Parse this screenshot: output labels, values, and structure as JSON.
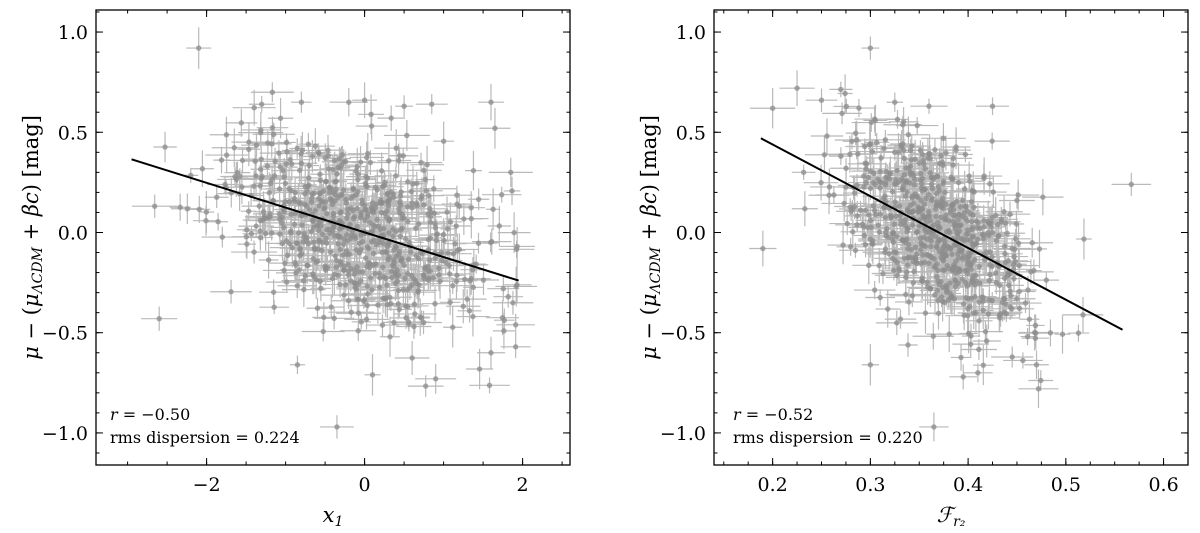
{
  "chart_data": [
    {
      "type": "scatter",
      "xlabel_symbol": "x",
      "xlabel_sub": "1",
      "ylabel_parts": {
        "mu": "μ",
        "minus": " − (",
        "mu2": "μ",
        "sub": "ΛCDM",
        "plus": " + ",
        "beta": "βc",
        "close": ") ",
        "unit": "[mag]"
      },
      "xlim": [
        -3.4,
        2.6
      ],
      "ylim": [
        -1.16,
        1.11
      ],
      "xticks": [
        -2,
        0,
        2
      ],
      "xtick_labels": [
        "−2",
        "0",
        "2"
      ],
      "yticks": [
        1.0,
        0.5,
        0.0,
        -0.5,
        -1.0
      ],
      "ytick_labels": [
        "1.0",
        "0.5",
        "0.0",
        "−0.5",
        "−1.0"
      ],
      "fit_line": {
        "x": [
          -2.95,
          1.95
        ],
        "y": [
          0.365,
          -0.24
        ]
      },
      "annotation": {
        "r_label": "r",
        "r_value": " = −0.50",
        "rms": "rms dispersion = 0.224"
      },
      "outliers": [
        {
          "x": -2.1,
          "y": 0.92
        },
        {
          "x": -2.6,
          "y": -0.43
        },
        {
          "x": -0.35,
          "y": -0.97
        },
        {
          "x": -0.85,
          "y": -0.66
        },
        {
          "x": 0.1,
          "y": -0.71
        },
        {
          "x": 1.6,
          "y": 0.65
        },
        {
          "x": 1.65,
          "y": 0.52
        },
        {
          "x": 1.6,
          "y": -0.6
        },
        {
          "x": 1.85,
          "y": 0.3
        },
        {
          "x": 0.9,
          "y": -0.73
        },
        {
          "x": 0.5,
          "y": 0.63
        },
        {
          "x": -0.2,
          "y": 0.65
        },
        {
          "x": 0.0,
          "y": 0.66
        },
        {
          "x": -0.8,
          "y": 0.65
        },
        {
          "x": 0.85,
          "y": 0.64
        }
      ],
      "cloud": {
        "n": 700,
        "x_mean": -0.1,
        "x_sd": 0.85,
        "x_min": -2.9,
        "x_max": 1.95,
        "slope": -0.123,
        "intercept": 0.0,
        "scatter_sd": 0.22,
        "seed": 11
      }
    },
    {
      "type": "scatter",
      "xlabel_symbol": "ℱ",
      "xlabel_sub": "r₂",
      "ylabel_parts": {
        "mu": "μ",
        "minus": " − (",
        "mu2": "μ",
        "sub": "ΛCDM",
        "plus": " + ",
        "beta": "βc",
        "close": ") ",
        "unit": "[mag]"
      },
      "xlim": [
        0.14,
        0.625
      ],
      "ylim": [
        -1.16,
        1.11
      ],
      "xticks": [
        0.2,
        0.3,
        0.4,
        0.5,
        0.6
      ],
      "xtick_labels": [
        "0.2",
        "0.3",
        "0.4",
        "0.5",
        "0.6"
      ],
      "yticks": [
        1.0,
        0.5,
        0.0,
        -0.5,
        -1.0
      ],
      "ytick_labels": [
        "1.0",
        "0.5",
        "0.0",
        "−0.5",
        "−1.0"
      ],
      "fit_line": {
        "x": [
          0.188,
          0.558
        ],
        "y": [
          0.47,
          -0.485
        ]
      },
      "annotation": {
        "r_label": "r",
        "r_value": " = −0.52",
        "rms": "rms dispersion = 0.220"
      },
      "outliers": [
        {
          "x": 0.3,
          "y": 0.92
        },
        {
          "x": 0.567,
          "y": 0.24
        },
        {
          "x": 0.365,
          "y": -0.97
        },
        {
          "x": 0.3,
          "y": -0.66
        },
        {
          "x": 0.2,
          "y": 0.62
        },
        {
          "x": 0.225,
          "y": 0.72
        },
        {
          "x": 0.47,
          "y": -0.66
        },
        {
          "x": 0.472,
          "y": -0.78
        },
        {
          "x": 0.19,
          "y": -0.08
        },
        {
          "x": 0.425,
          "y": 0.63
        },
        {
          "x": 0.36,
          "y": 0.63
        },
        {
          "x": 0.445,
          "y": -0.08
        },
        {
          "x": 0.395,
          "y": -0.72
        },
        {
          "x": 0.41,
          "y": -0.7
        },
        {
          "x": 0.25,
          "y": 0.66
        }
      ],
      "cloud": {
        "n": 700,
        "x_mean": 0.368,
        "x_sd": 0.045,
        "x_min": 0.2,
        "x_max": 0.52,
        "slope": -2.58,
        "intercept": 0.955,
        "scatter_sd": 0.21,
        "seed": 29
      }
    }
  ]
}
